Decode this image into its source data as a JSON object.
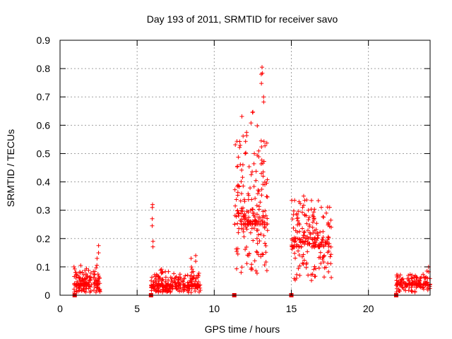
{
  "chart_data": {
    "type": "scatter",
    "title": "Day 193 of 2011, SRMTID for receiver savo",
    "xlabel": "GPS time / hours",
    "ylabel": "SRMTID / TECUs",
    "xlim": [
      0,
      24
    ],
    "ylim": [
      0,
      0.9
    ],
    "grid": true,
    "marker": "+",
    "color": "#ff0000",
    "x_ticks": [
      "0",
      "5",
      "10",
      "15",
      "20"
    ],
    "y_ticks": [
      "0",
      "0.1",
      "0.2",
      "0.3",
      "0.4",
      "0.5",
      "0.6",
      "0.7",
      "0.8",
      "0.9"
    ],
    "zero_markers": [
      0.95,
      5.9,
      11.3,
      15.0,
      21.8
    ],
    "clusters": [
      {
        "x_start": 0.9,
        "x_end": 2.6,
        "count": 150,
        "base": 0.035,
        "spread": 0.05,
        "peaks": [
          {
            "x": 2.4,
            "y": 0.13
          },
          {
            "x": 2.5,
            "y": 0.175
          }
        ]
      },
      {
        "x_start": 5.9,
        "x_end": 9.1,
        "count": 260,
        "base": 0.03,
        "spread": 0.045,
        "peaks": [
          {
            "x": 6.0,
            "y": 0.32
          },
          {
            "x": 5.98,
            "y": 0.27
          },
          {
            "x": 6.03,
            "y": 0.19
          },
          {
            "x": 8.5,
            "y": 0.13
          },
          {
            "x": 8.8,
            "y": 0.14
          }
        ]
      },
      {
        "x_start": 11.3,
        "x_end": 13.5,
        "count": 230,
        "base": 0.25,
        "spread": 0.3,
        "peaks": [
          {
            "x": 13.1,
            "y": 0.805
          },
          {
            "x": 13.05,
            "y": 0.78
          },
          {
            "x": 13.2,
            "y": 0.7
          },
          {
            "x": 12.1,
            "y": 0.575
          },
          {
            "x": 12.6,
            "y": 0.5
          }
        ]
      },
      {
        "x_start": 15.0,
        "x_end": 17.6,
        "count": 220,
        "base": 0.17,
        "spread": 0.12,
        "peaks": [
          {
            "x": 15.8,
            "y": 0.35
          },
          {
            "x": 15.5,
            "y": 0.33
          },
          {
            "x": 16.1,
            "y": 0.3
          }
        ]
      },
      {
        "x_start": 21.8,
        "x_end": 24.0,
        "count": 150,
        "base": 0.035,
        "spread": 0.03,
        "peaks": [
          {
            "x": 23.9,
            "y": 0.1
          },
          {
            "x": 23.8,
            "y": 0.085
          }
        ]
      }
    ]
  }
}
